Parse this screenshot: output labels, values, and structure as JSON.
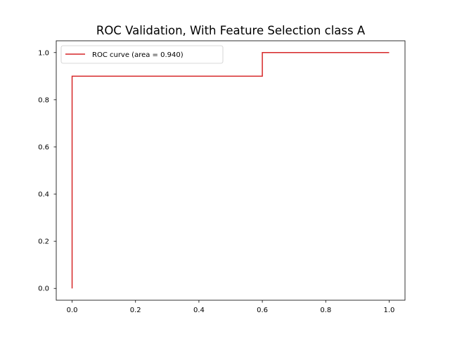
{
  "chart_data": {
    "type": "line",
    "title": "ROC Validation, With Feature Selection class A",
    "xlabel": "",
    "ylabel": "",
    "xlim": [
      -0.05,
      1.05
    ],
    "ylim": [
      -0.05,
      1.05
    ],
    "xticks": [
      0.0,
      0.2,
      0.4,
      0.6,
      0.8,
      1.0
    ],
    "xtick_labels": [
      "0.0",
      "0.2",
      "0.4",
      "0.6",
      "0.8",
      "1.0"
    ],
    "yticks": [
      0.0,
      0.2,
      0.4,
      0.6,
      0.8,
      1.0
    ],
    "ytick_labels": [
      "0.0",
      "0.2",
      "0.4",
      "0.6",
      "0.8",
      "1.0"
    ],
    "grid": false,
    "legend_position": "upper-left",
    "series": [
      {
        "name": "ROC curve (area = 0.940)",
        "color": "#d62728",
        "x": [
          0.0,
          0.0,
          0.6,
          0.6,
          1.0
        ],
        "y": [
          0.0,
          0.9,
          0.9,
          1.0,
          1.0
        ]
      }
    ]
  }
}
